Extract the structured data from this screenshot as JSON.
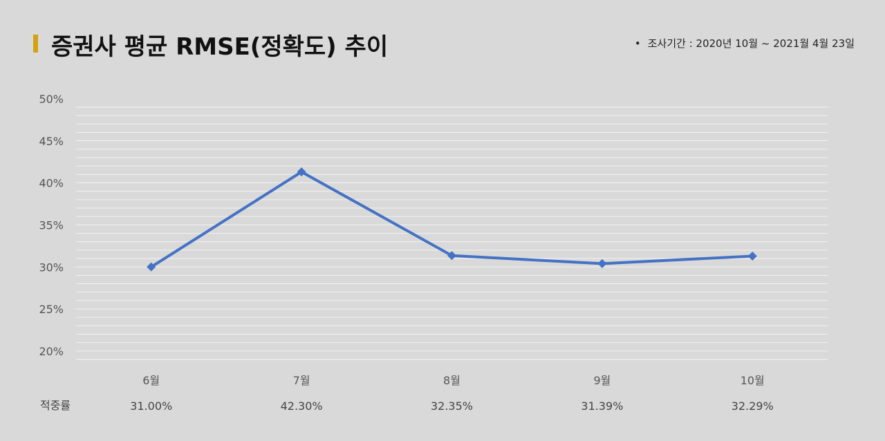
{
  "header": {
    "title": "증권사 평균 RMSE(정확도) 추이",
    "note_bullet": "•",
    "note": "조사기간 : 2020년 10월 ~ 2021월 4월 23일"
  },
  "chart_data": {
    "type": "line",
    "title": "증권사 평균 RMSE(정확도) 추이",
    "categories": [
      "6월",
      "7월",
      "8월",
      "9월",
      "10월"
    ],
    "series": [
      {
        "values": [
          31.0,
          42.3,
          32.35,
          31.39,
          32.29
        ]
      }
    ],
    "ylim": [
      20,
      50
    ],
    "ytick_labels": [
      "20%",
      "25%",
      "30%",
      "35%",
      "40%",
      "45%",
      "50%"
    ],
    "grid": true,
    "legend": "none",
    "color": "#4472c4",
    "table": {
      "row_label": "적중률",
      "values": [
        "31.00%",
        "42.30%",
        "32.35%",
        "31.39%",
        "32.29%"
      ]
    }
  }
}
